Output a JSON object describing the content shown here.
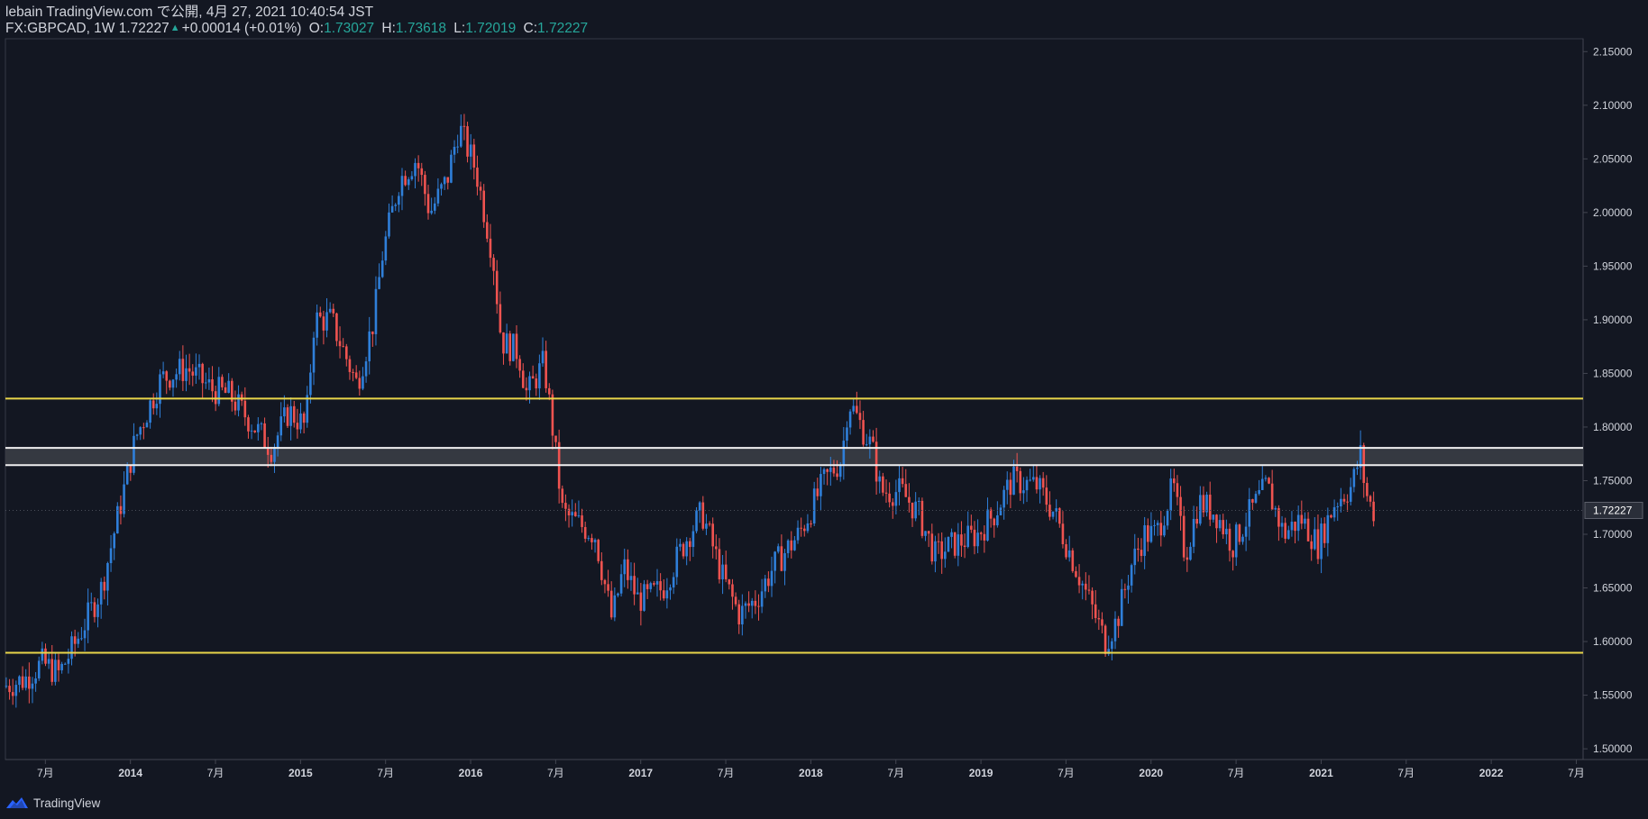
{
  "header": {
    "line1": "lebain TradingView.com で公開, 4月 27, 2021 10:40:54 JST",
    "symbol": "FX:GBPCAD, 1W",
    "last": "1.72227",
    "change": "+0.00014 (+0.01%)",
    "o_label": "O:",
    "o": "1.73027",
    "h_label": "H:",
    "h": "1.73618",
    "l_label": "L:",
    "l": "1.72019",
    "c_label": "C:",
    "c": "1.72227"
  },
  "footer": {
    "brand": "TradingView"
  },
  "colors": {
    "background": "#131722",
    "up": "#2f7fd9",
    "down": "#ef5350",
    "level": "#e9d64a",
    "zone_border": "#f0f0f0",
    "zone_fill": "#3a3d45",
    "axis_text": "#d1d4dc",
    "price_label_bg": "#2a2e39"
  },
  "chart_data": {
    "type": "candlestick",
    "symbol": "GBPCAD",
    "timeframe": "1W",
    "title": "FX:GBPCAD, 1W",
    "price_axis": {
      "ticks": [
        "2.15000",
        "2.10000",
        "2.05000",
        "2.00000",
        "1.95000",
        "1.90000",
        "1.85000",
        "1.80000",
        "1.75000",
        "1.70000",
        "1.65000",
        "1.60000",
        "1.55000",
        "1.50000"
      ],
      "range": [
        1.49,
        2.162
      ]
    },
    "time_axis": {
      "labels": [
        "7月",
        "2014",
        "7月",
        "2015",
        "7月",
        "2016",
        "7月",
        "2017",
        "7月",
        "2018",
        "7月",
        "2019",
        "7月",
        "2020",
        "7月",
        "2021",
        "7月",
        "2022",
        "7月"
      ],
      "dates": [
        2013.5,
        2014.0,
        2014.5,
        2015.0,
        2015.5,
        2016.0,
        2016.5,
        2017.0,
        2017.5,
        2018.0,
        2018.5,
        2019.0,
        2019.5,
        2020.0,
        2020.5,
        2021.0,
        2021.5,
        2022.0,
        2022.5
      ],
      "range": [
        2013.265,
        2022.54
      ]
    },
    "current_price_label": "1.72227",
    "current_price": 1.72227,
    "horizontal_levels": [
      1.8265,
      1.5895
    ],
    "zone": {
      "top": 1.7805,
      "bottom": 1.7645
    },
    "series_keypoints": [
      [
        2013.27,
        1.558
      ],
      [
        2013.4,
        1.565
      ],
      [
        2013.5,
        1.58
      ],
      [
        2013.6,
        1.57
      ],
      [
        2013.7,
        1.6
      ],
      [
        2013.85,
        1.65
      ],
      [
        2013.95,
        1.72
      ],
      [
        2014.05,
        1.79
      ],
      [
        2014.2,
        1.845
      ],
      [
        2014.35,
        1.855
      ],
      [
        2014.5,
        1.835
      ],
      [
        2014.6,
        1.83
      ],
      [
        2014.75,
        1.8
      ],
      [
        2014.85,
        1.78
      ],
      [
        2014.95,
        1.815
      ],
      [
        2015.05,
        1.8
      ],
      [
        2015.1,
        1.9
      ],
      [
        2015.2,
        1.9
      ],
      [
        2015.3,
        1.86
      ],
      [
        2015.35,
        1.84
      ],
      [
        2015.45,
        1.9
      ],
      [
        2015.5,
        1.96
      ],
      [
        2015.6,
        2.03
      ],
      [
        2015.7,
        2.05
      ],
      [
        2015.78,
        2.0
      ],
      [
        2015.88,
        2.03
      ],
      [
        2015.95,
        2.08
      ],
      [
        2016.05,
        2.04
      ],
      [
        2016.15,
        1.96
      ],
      [
        2016.2,
        1.88
      ],
      [
        2016.3,
        1.87
      ],
      [
        2016.35,
        1.83
      ],
      [
        2016.45,
        1.86
      ],
      [
        2016.5,
        1.8
      ],
      [
        2016.56,
        1.72
      ],
      [
        2016.65,
        1.71
      ],
      [
        2016.75,
        1.7
      ],
      [
        2016.85,
        1.62
      ],
      [
        2016.92,
        1.67
      ],
      [
        2017.0,
        1.64
      ],
      [
        2017.05,
        1.64
      ],
      [
        2017.15,
        1.65
      ],
      [
        2017.3,
        1.7
      ],
      [
        2017.38,
        1.72
      ],
      [
        2017.5,
        1.66
      ],
      [
        2017.6,
        1.625
      ],
      [
        2017.7,
        1.64
      ],
      [
        2017.8,
        1.67
      ],
      [
        2017.95,
        1.7
      ],
      [
        2018.1,
        1.75
      ],
      [
        2018.2,
        1.77
      ],
      [
        2018.24,
        1.825
      ],
      [
        2018.38,
        1.78
      ],
      [
        2018.43,
        1.74
      ],
      [
        2018.55,
        1.74
      ],
      [
        2018.65,
        1.72
      ],
      [
        2018.75,
        1.68
      ],
      [
        2018.85,
        1.69
      ],
      [
        2019.0,
        1.7
      ],
      [
        2019.1,
        1.72
      ],
      [
        2019.2,
        1.75
      ],
      [
        2019.35,
        1.745
      ],
      [
        2019.45,
        1.72
      ],
      [
        2019.55,
        1.68
      ],
      [
        2019.65,
        1.64
      ],
      [
        2019.75,
        1.6
      ],
      [
        2019.82,
        1.62
      ],
      [
        2019.9,
        1.67
      ],
      [
        2019.98,
        1.7
      ],
      [
        2020.05,
        1.7
      ],
      [
        2020.15,
        1.745
      ],
      [
        2020.22,
        1.68
      ],
      [
        2020.3,
        1.73
      ],
      [
        2020.4,
        1.72
      ],
      [
        2020.5,
        1.69
      ],
      [
        2020.6,
        1.72
      ],
      [
        2020.7,
        1.745
      ],
      [
        2020.8,
        1.7
      ],
      [
        2020.9,
        1.715
      ],
      [
        2021.0,
        1.69
      ],
      [
        2021.1,
        1.73
      ],
      [
        2021.2,
        1.745
      ],
      [
        2021.25,
        1.775
      ],
      [
        2021.28,
        1.74
      ],
      [
        2021.32,
        1.722
      ]
    ]
  }
}
